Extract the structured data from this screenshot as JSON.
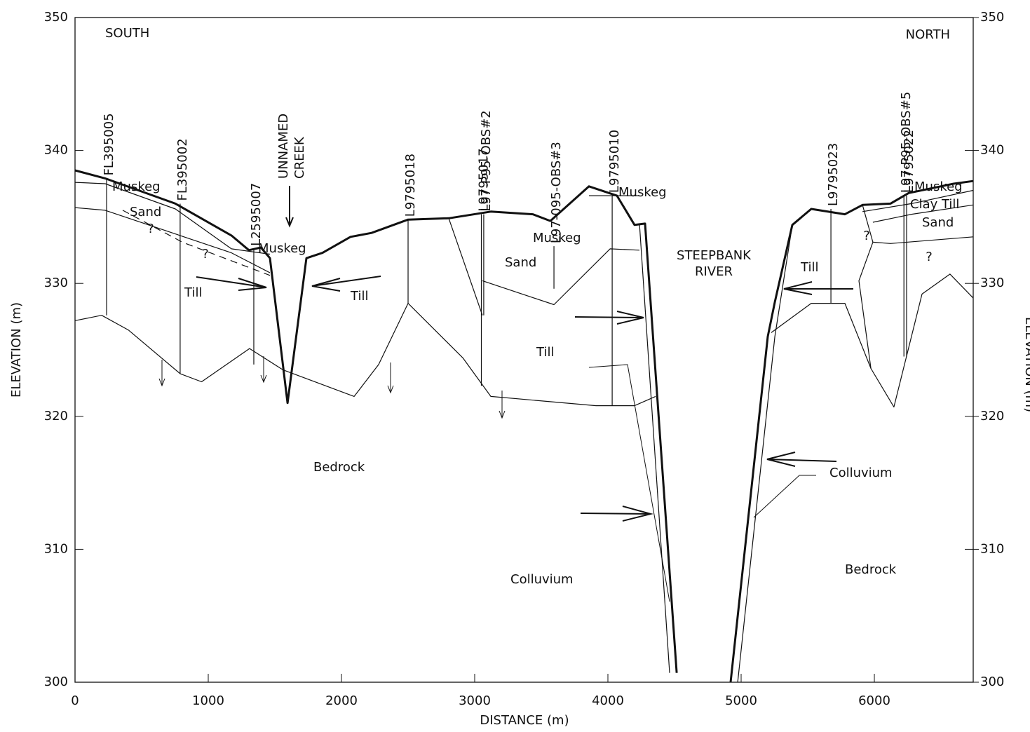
{
  "chart_data": {
    "type": "cross-section",
    "xlabel": "DISTANCE (m)",
    "ylabel": "ELEVATION (m)",
    "y2label": "ELEVATION (m)",
    "xlim": [
      0,
      6742
    ],
    "xticks": [
      0,
      1000,
      2000,
      3000,
      4000,
      5000,
      6000
    ],
    "ylim": [
      300,
      350
    ],
    "yticks": [
      300,
      310,
      320,
      330,
      340,
      350
    ],
    "y2lim": [
      300,
      350
    ],
    "y2ticks": [
      300,
      310,
      320,
      330,
      340,
      350
    ],
    "color": "#111111",
    "series": [
      {
        "style": "bold",
        "x": [
          0,
          226,
          753,
          1174,
          1305,
          1395,
          1463,
          1595,
          1737,
          1858,
          2068,
          2226,
          2500,
          2805,
          3121,
          3437,
          3568,
          3858,
          4068,
          4200,
          4279,
          4516,
          4700,
          4921,
          5200,
          5253,
          5384,
          5526,
          5779,
          5911,
          6121,
          6258,
          6595,
          6742
        ],
        "values": [
          338.5,
          337.9,
          336,
          333.6,
          332.5,
          332.7,
          331.9,
          321,
          331.9,
          332.3,
          333.5,
          333.8,
          334.8,
          334.9,
          335.4,
          335.2,
          334.7,
          337.3,
          336.6,
          334.4,
          334.5,
          300.7,
          null,
          300,
          326,
          328.6,
          334.4,
          335.6,
          335.2,
          335.9,
          336,
          336.8,
          337.5,
          337.7
        ]
      },
      {
        "style": "thin",
        "x": [
          0,
          200,
          400,
          790,
          950,
          1310,
          1560,
          2095,
          2279,
          2500,
          2911,
          3121,
          3911,
          4200,
          4358,
          4700,
          5226,
          5526,
          5779,
          5974,
          6147,
          6358,
          6568,
          6742
        ],
        "values": [
          327.2,
          327.6,
          326.5,
          323.2,
          322.6,
          325.1,
          323.5,
          321.5,
          323.9,
          328.5,
          324.4,
          321.5,
          320.8,
          320.8,
          321.5,
          null,
          326.3,
          328.5,
          328.5,
          323.6,
          320.7,
          329.2,
          330.7,
          328.9
        ]
      },
      {
        "style": "thin",
        "x": [
          0,
          226,
          1174,
          1463
        ],
        "values": [
          335.7,
          335.5,
          332.3,
          330.8
        ]
      },
      {
        "style": "thin",
        "x": [
          0,
          226,
          753,
          1174,
          1463
        ],
        "values": [
          337.6,
          337.5,
          335.6,
          332.6,
          332.2
        ]
      },
      {
        "style": "dashed",
        "x": [
          358,
          805,
          1463
        ],
        "values": [
          335.5,
          333.1,
          330.6
        ]
      },
      {
        "style": "thin",
        "x": [
          2805,
          3058
        ],
        "values": [
          334.9,
          327.6
        ]
      },
      {
        "style": "thin",
        "x": [
          3058,
          3595,
          4016,
          4237
        ],
        "values": [
          330.2,
          328.4,
          332.6,
          332.5
        ]
      },
      {
        "style": "thin",
        "x": [
          3858,
          4068,
          4237
        ],
        "values": [
          336.6,
          336.6,
          336.6
        ]
      },
      {
        "style": "thin",
        "x": [
          4237,
          4463
        ],
        "values": [
          334.5,
          300.7
        ]
      },
      {
        "style": "thin",
        "x": [
          4974,
          5253,
          5384
        ],
        "values": [
          300,
          326,
          334.4
        ]
      },
      {
        "style": "thin",
        "x": [
          5911,
          5989,
          5884,
          5974
        ],
        "values": [
          335.9,
          333.1,
          330.2,
          323.6
        ]
      },
      {
        "style": "thin",
        "x": [
          5989,
          6121,
          6742
        ],
        "values": [
          333.1,
          333,
          333.5
        ]
      },
      {
        "style": "thin",
        "x": [
          5911,
          6279,
          6742
        ],
        "values": [
          335.4,
          336,
          337
        ]
      },
      {
        "style": "thin",
        "x": [
          5989,
          6279,
          6742
        ],
        "values": [
          334.6,
          335.2,
          335.9
        ]
      }
    ],
    "boreholes": [
      {
        "name": "FL395005",
        "x": 237,
        "top": 337.9,
        "bottom": 327.6
      },
      {
        "name": "FL395002",
        "x": 789,
        "top": 336,
        "bottom": 323.2
      },
      {
        "name": "L2595007",
        "x": 1342,
        "top": 332.6,
        "bottom": 323.9
      },
      {
        "name": "L9795018",
        "x": 2500,
        "top": 334.8,
        "bottom": 328.5
      },
      {
        "name": "L9795017",
        "x": 3050,
        "top": 335.2,
        "bottom": 322.3
      },
      {
        "name": "L97-P95-OBS#2",
        "x": 3068,
        "top": 335.2,
        "bottom": 327.6
      },
      {
        "name": "L97-095-OBS#3",
        "x": 3595,
        "top": 332.8,
        "bottom": 329.6
      },
      {
        "name": "L9795010",
        "x": 4032,
        "top": 336.6,
        "bottom": 320.8
      },
      {
        "name": "L9795023",
        "x": 5674,
        "top": 335.6,
        "bottom": 328.5
      },
      {
        "name": "L97-P95-OBS#5",
        "x": 6222,
        "top": 336.6,
        "bottom": 324.5
      },
      {
        "name": "L9795022",
        "x": 6242,
        "top": 336.6,
        "bottom": 324.5
      }
    ],
    "annotations": [
      "SOUTH",
      "NORTH",
      "UNNAMED",
      "CREEK",
      "Muskeg",
      "Muskeg",
      "Muskeg",
      "Muskeg",
      "Muskeg",
      "Sand",
      "Sand",
      "Sand",
      "Till",
      "Till",
      "Till",
      "Till",
      "Clay Till",
      "STEEPBANK",
      "RIVER",
      "Bedrock",
      "Bedrock",
      "Colluvium",
      "Colluvium",
      "?",
      "?",
      "?",
      "?"
    ]
  }
}
